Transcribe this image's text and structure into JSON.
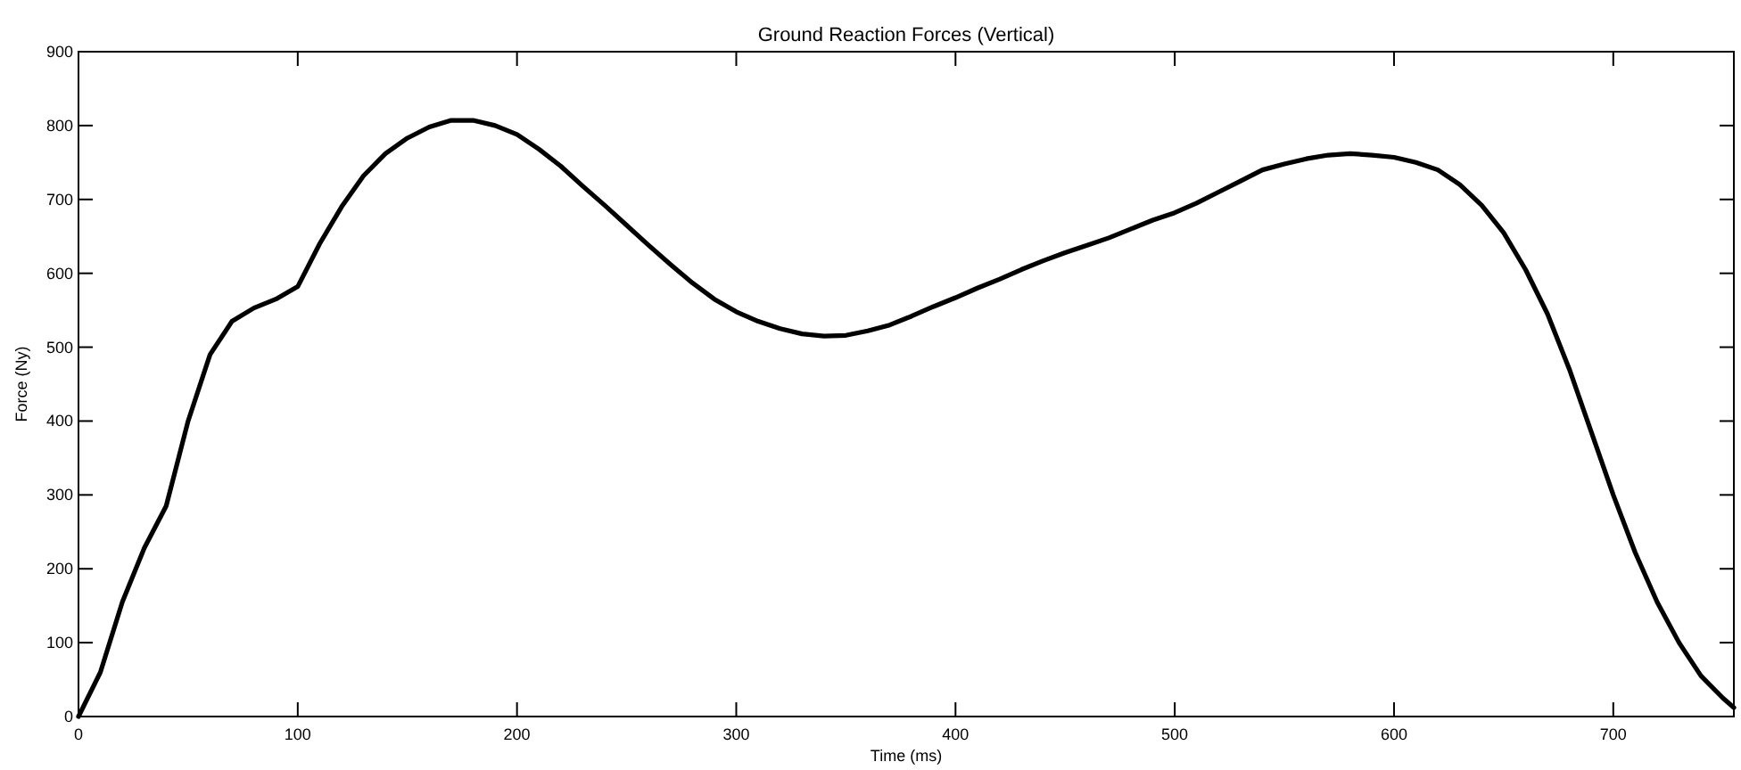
{
  "chart_data": {
    "type": "line",
    "title": "Ground Reaction Forces (Vertical)",
    "xlabel": "Time (ms)",
    "ylabel": "Force (Ny)",
    "xlim": [
      0,
      755
    ],
    "xticks": [
      0,
      100,
      200,
      300,
      400,
      500,
      600,
      700
    ],
    "ylim": [
      0,
      900
    ],
    "yticks": [
      0,
      100,
      200,
      300,
      400,
      500,
      600,
      700,
      800,
      900
    ],
    "grid": false,
    "x": [
      0,
      10,
      20,
      30,
      40,
      50,
      60,
      70,
      80,
      90,
      100,
      110,
      120,
      130,
      140,
      150,
      160,
      170,
      180,
      190,
      200,
      210,
      220,
      230,
      240,
      250,
      260,
      270,
      280,
      290,
      300,
      310,
      320,
      330,
      340,
      350,
      360,
      370,
      380,
      390,
      400,
      410,
      420,
      430,
      440,
      450,
      460,
      470,
      480,
      490,
      500,
      510,
      520,
      530,
      540,
      550,
      560,
      570,
      580,
      590,
      600,
      610,
      620,
      630,
      640,
      650,
      660,
      670,
      680,
      690,
      700,
      710,
      720,
      730,
      740,
      750,
      755
    ],
    "series": [
      {
        "color": "#000000",
        "values": [
          0,
          60,
          155,
          228,
          285,
          400,
          490,
          535,
          553,
          565,
          582,
          640,
          690,
          732,
          762,
          783,
          798,
          807,
          807,
          800,
          788,
          768,
          745,
          718,
          692,
          665,
          638,
          612,
          587,
          565,
          548,
          535,
          525,
          518,
          515,
          516,
          522,
          530,
          542,
          555,
          567,
          580,
          592,
          605,
          617,
          628,
          638,
          648,
          660,
          672,
          682,
          695,
          710,
          725,
          740,
          748,
          755,
          760,
          762,
          760,
          757,
          750,
          740,
          720,
          692,
          655,
          605,
          545,
          470,
          385,
          300,
          222,
          155,
          100,
          55,
          25,
          12
        ]
      }
    ]
  }
}
